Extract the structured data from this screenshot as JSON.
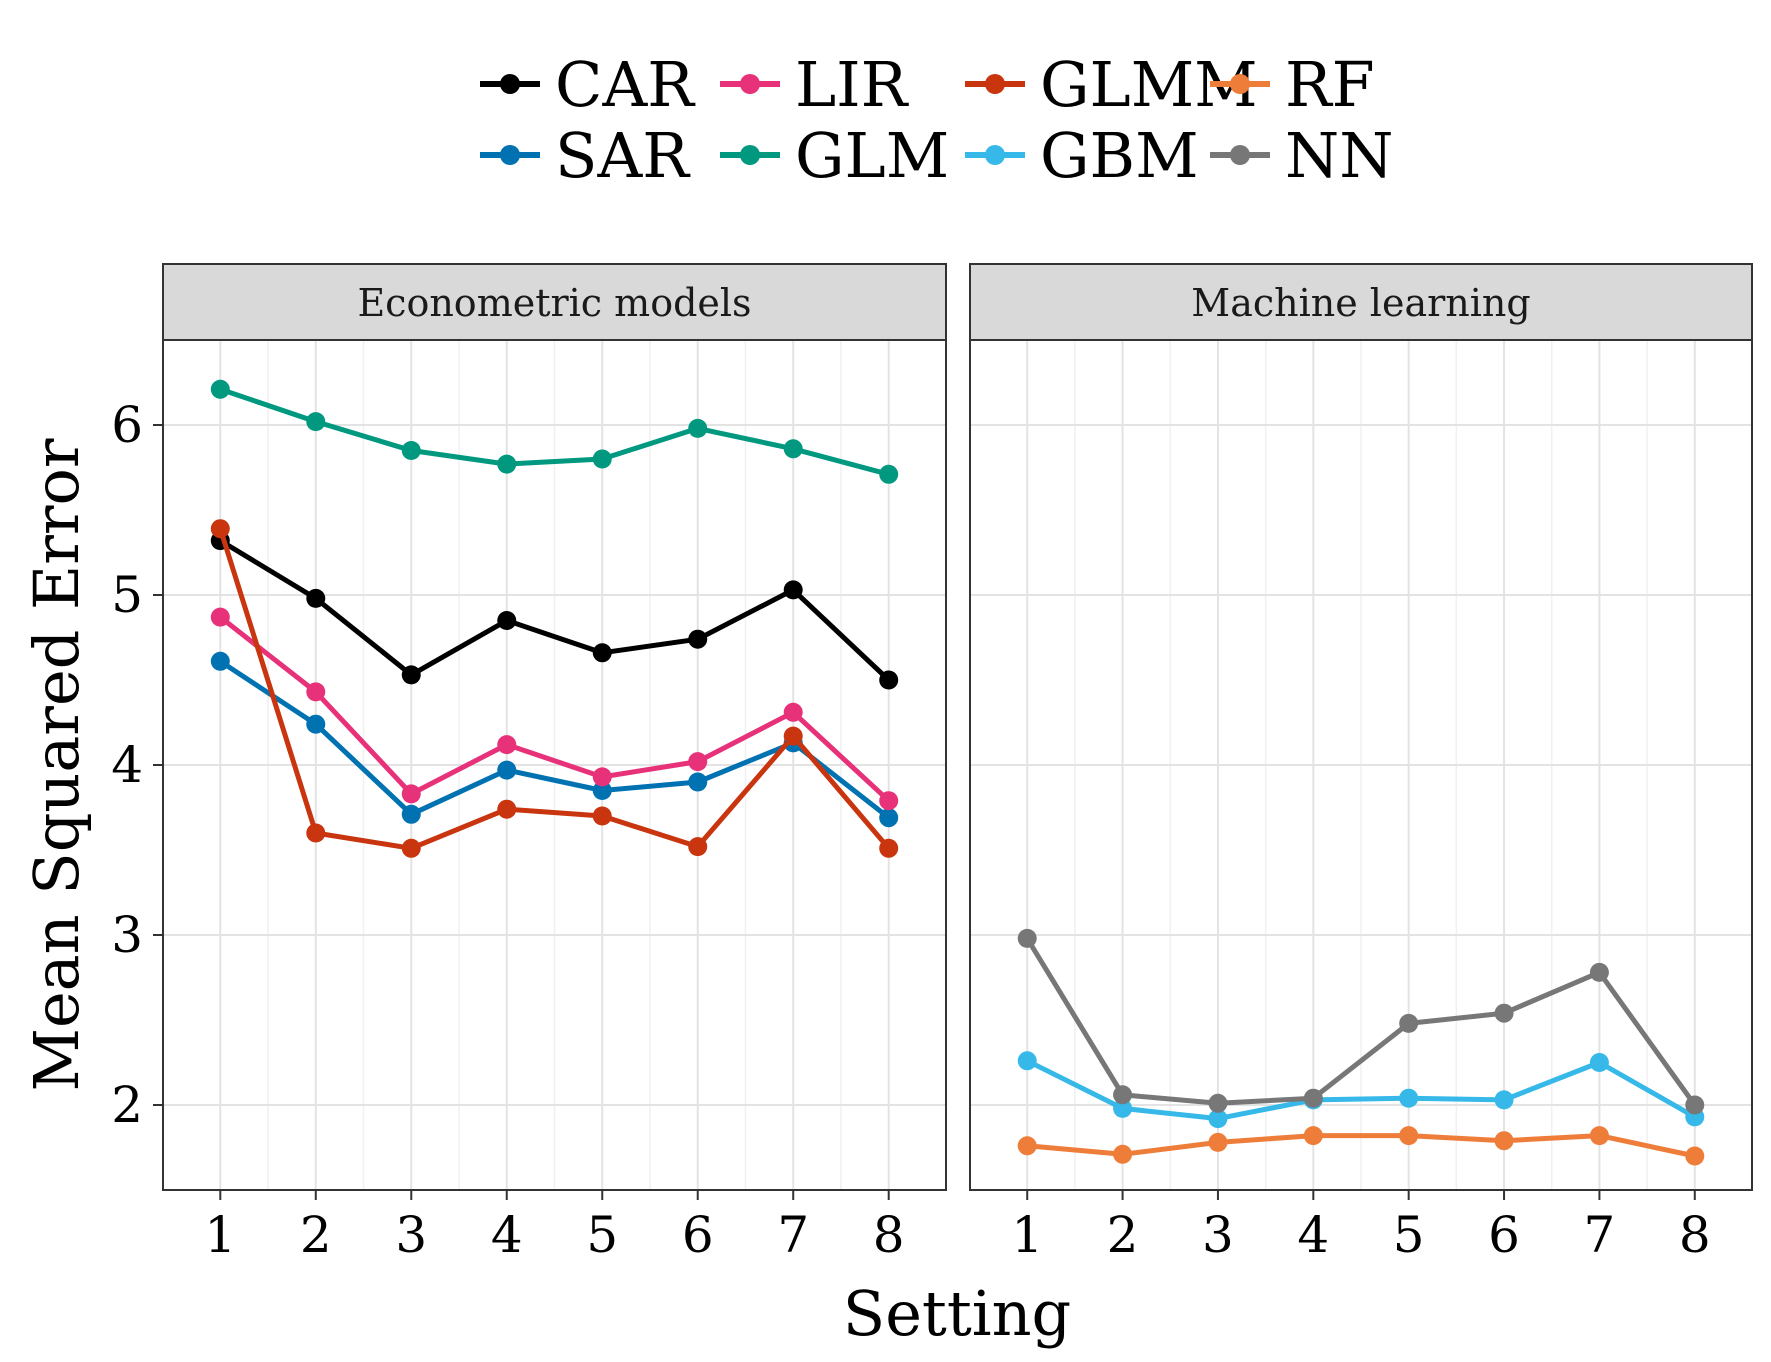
{
  "chart_data": {
    "type": "line",
    "xlabel": "Setting",
    "ylabel": "Mean Squared Error",
    "x": [
      1,
      2,
      3,
      4,
      5,
      6,
      7,
      8
    ],
    "ylim": [
      1.5,
      6.5
    ],
    "yticks": [
      2,
      3,
      4,
      5,
      6
    ],
    "grid": true,
    "legend_position": "top",
    "panels": [
      {
        "title": "Econometric models",
        "series": [
          {
            "name": "CAR",
            "color": "#000000",
            "values": [
              5.32,
              4.98,
              4.53,
              4.85,
              4.66,
              4.74,
              5.03,
              4.5
            ]
          },
          {
            "name": "SAR",
            "color": "#0072B2",
            "values": [
              4.61,
              4.24,
              3.71,
              3.97,
              3.85,
              3.9,
              4.13,
              3.69
            ]
          },
          {
            "name": "LIR",
            "color": "#E7327A",
            "values": [
              4.87,
              4.43,
              3.83,
              4.12,
              3.93,
              4.02,
              4.31,
              3.79
            ]
          },
          {
            "name": "GLM",
            "color": "#009980",
            "values": [
              6.21,
              6.02,
              5.85,
              5.77,
              5.8,
              5.98,
              5.86,
              5.71
            ]
          },
          {
            "name": "GLMM",
            "color": "#C8350E",
            "values": [
              5.39,
              3.6,
              3.51,
              3.74,
              3.7,
              3.52,
              4.17,
              3.51
            ]
          }
        ]
      },
      {
        "title": "Machine learning",
        "series": [
          {
            "name": "GBM",
            "color": "#36B8E8",
            "values": [
              2.26,
              1.98,
              1.92,
              2.03,
              2.04,
              2.03,
              2.25,
              1.93
            ]
          },
          {
            "name": "RF",
            "color": "#EF7D3A",
            "values": [
              1.76,
              1.71,
              1.78,
              1.82,
              1.82,
              1.79,
              1.82,
              1.7
            ]
          },
          {
            "name": "NN",
            "color": "#777777",
            "values": [
              2.98,
              2.06,
              2.01,
              2.04,
              2.48,
              2.54,
              2.78,
              2.0
            ]
          }
        ]
      }
    ],
    "legend": [
      {
        "name": "CAR",
        "color": "#000000"
      },
      {
        "name": "SAR",
        "color": "#0072B2"
      },
      {
        "name": "LIR",
        "color": "#E7327A"
      },
      {
        "name": "GLM",
        "color": "#009980"
      },
      {
        "name": "GLMM",
        "color": "#C8350E"
      },
      {
        "name": "GBM",
        "color": "#36B8E8"
      },
      {
        "name": "RF",
        "color": "#EF7D3A"
      },
      {
        "name": "NN",
        "color": "#777777"
      }
    ]
  }
}
